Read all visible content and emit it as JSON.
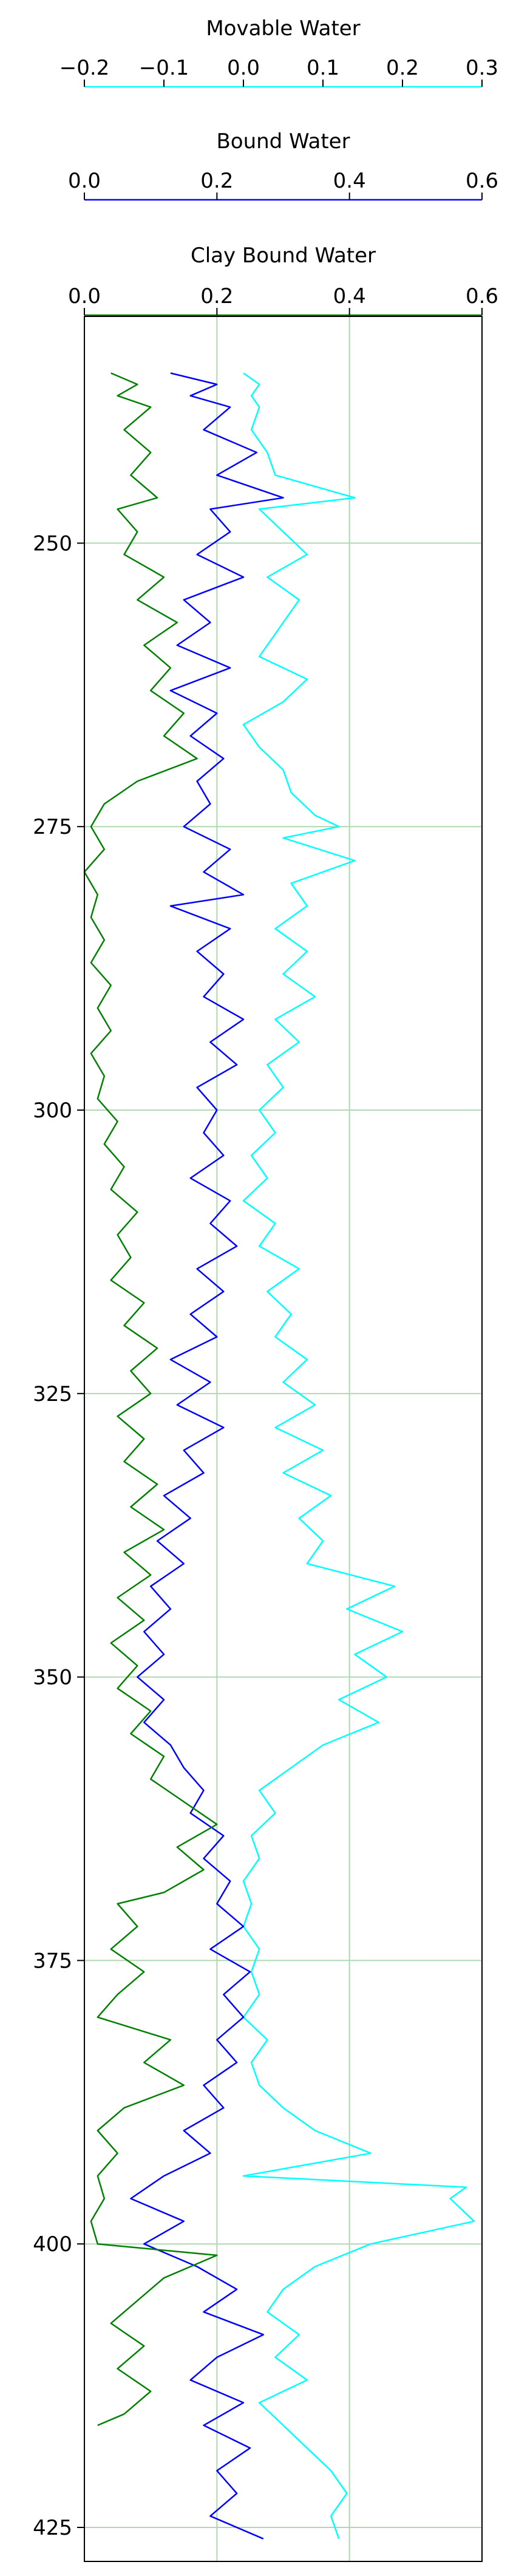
{
  "chart_data": {
    "type": "line",
    "orientation": "vertical-depth",
    "y": {
      "ticks": [
        250,
        275,
        300,
        325,
        350,
        375,
        400,
        425
      ],
      "tick_labels": [
        "250",
        "275",
        "300",
        "325",
        "350",
        "375",
        "400",
        "425"
      ],
      "range": [
        230,
        428
      ],
      "inverted": true
    },
    "grid": true,
    "tracks": [
      {
        "label": "Movable Water",
        "color": "#00ffff",
        "range": [
          -0.2,
          0.3
        ],
        "ticks": [
          -0.2,
          -0.1,
          0.0,
          0.1,
          0.2,
          0.3
        ],
        "tick_labels": [
          "−0.2",
          "−0.1",
          "0.0",
          "0.1",
          "0.2",
          "0.3"
        ],
        "values": [
          [
            235,
            0.0
          ],
          [
            236,
            0.02
          ],
          [
            237,
            0.01
          ],
          [
            238,
            0.02
          ],
          [
            240,
            0.01
          ],
          [
            242,
            0.03
          ],
          [
            244,
            0.04
          ],
          [
            246,
            0.14
          ],
          [
            247,
            0.02
          ],
          [
            249,
            0.05
          ],
          [
            251,
            0.08
          ],
          [
            253,
            0.03
          ],
          [
            255,
            0.07
          ],
          [
            258,
            0.04
          ],
          [
            260,
            0.02
          ],
          [
            262,
            0.08
          ],
          [
            264,
            0.05
          ],
          [
            266,
            0.0
          ],
          [
            268,
            0.02
          ],
          [
            270,
            0.05
          ],
          [
            272,
            0.06
          ],
          [
            274,
            0.09
          ],
          [
            275,
            0.12
          ],
          [
            276,
            0.05
          ],
          [
            278,
            0.14
          ],
          [
            280,
            0.06
          ],
          [
            282,
            0.08
          ],
          [
            284,
            0.04
          ],
          [
            286,
            0.08
          ],
          [
            288,
            0.05
          ],
          [
            290,
            0.09
          ],
          [
            292,
            0.04
          ],
          [
            294,
            0.07
          ],
          [
            296,
            0.03
          ],
          [
            298,
            0.05
          ],
          [
            300,
            0.02
          ],
          [
            302,
            0.04
          ],
          [
            304,
            0.01
          ],
          [
            306,
            0.03
          ],
          [
            308,
            0.0
          ],
          [
            310,
            0.04
          ],
          [
            312,
            0.02
          ],
          [
            314,
            0.07
          ],
          [
            316,
            0.03
          ],
          [
            318,
            0.06
          ],
          [
            320,
            0.04
          ],
          [
            322,
            0.08
          ],
          [
            324,
            0.05
          ],
          [
            326,
            0.09
          ],
          [
            328,
            0.04
          ],
          [
            330,
            0.1
          ],
          [
            332,
            0.05
          ],
          [
            334,
            0.11
          ],
          [
            336,
            0.07
          ],
          [
            338,
            0.1
          ],
          [
            340,
            0.08
          ],
          [
            342,
            0.19
          ],
          [
            344,
            0.13
          ],
          [
            346,
            0.2
          ],
          [
            348,
            0.14
          ],
          [
            350,
            0.18
          ],
          [
            352,
            0.12
          ],
          [
            354,
            0.17
          ],
          [
            356,
            0.1
          ],
          [
            358,
            0.06
          ],
          [
            360,
            0.02
          ],
          [
            362,
            0.04
          ],
          [
            364,
            0.01
          ],
          [
            366,
            0.02
          ],
          [
            368,
            0.0
          ],
          [
            370,
            0.01
          ],
          [
            372,
            0.0
          ],
          [
            374,
            0.02
          ],
          [
            376,
            0.01
          ],
          [
            378,
            0.02
          ],
          [
            380,
            0.0
          ],
          [
            382,
            0.03
          ],
          [
            384,
            0.01
          ],
          [
            386,
            0.02
          ],
          [
            388,
            0.05
          ],
          [
            390,
            0.09
          ],
          [
            392,
            0.16
          ],
          [
            394,
            0.0
          ],
          [
            395,
            0.28
          ],
          [
            396,
            0.26
          ],
          [
            398,
            0.29
          ],
          [
            400,
            0.16
          ],
          [
            402,
            0.09
          ],
          [
            404,
            0.05
          ],
          [
            406,
            0.03
          ],
          [
            408,
            0.07
          ],
          [
            410,
            0.04
          ],
          [
            412,
            0.08
          ],
          [
            414,
            0.02
          ],
          [
            416,
            0.05
          ],
          [
            418,
            0.08
          ],
          [
            420,
            0.11
          ],
          [
            422,
            0.13
          ],
          [
            424,
            0.11
          ],
          [
            426,
            0.12
          ]
        ]
      },
      {
        "label": "Bound Water",
        "color": "#0000ff",
        "range": [
          0.0,
          0.6
        ],
        "ticks": [
          0.0,
          0.2,
          0.4,
          0.6
        ],
        "tick_labels": [
          "0.0",
          "0.2",
          "0.4",
          "0.6"
        ],
        "values": [
          [
            235,
            0.13
          ],
          [
            236,
            0.2
          ],
          [
            237,
            0.16
          ],
          [
            238,
            0.22
          ],
          [
            240,
            0.18
          ],
          [
            242,
            0.26
          ],
          [
            244,
            0.2
          ],
          [
            246,
            0.3
          ],
          [
            247,
            0.19
          ],
          [
            249,
            0.22
          ],
          [
            251,
            0.17
          ],
          [
            253,
            0.24
          ],
          [
            255,
            0.15
          ],
          [
            257,
            0.19
          ],
          [
            259,
            0.14
          ],
          [
            261,
            0.22
          ],
          [
            263,
            0.13
          ],
          [
            265,
            0.2
          ],
          [
            267,
            0.16
          ],
          [
            269,
            0.21
          ],
          [
            271,
            0.17
          ],
          [
            273,
            0.19
          ],
          [
            275,
            0.15
          ],
          [
            277,
            0.22
          ],
          [
            279,
            0.18
          ],
          [
            281,
            0.24
          ],
          [
            282,
            0.13
          ],
          [
            284,
            0.22
          ],
          [
            286,
            0.17
          ],
          [
            288,
            0.21
          ],
          [
            290,
            0.18
          ],
          [
            292,
            0.24
          ],
          [
            294,
            0.19
          ],
          [
            296,
            0.23
          ],
          [
            298,
            0.17
          ],
          [
            300,
            0.2
          ],
          [
            302,
            0.18
          ],
          [
            304,
            0.21
          ],
          [
            306,
            0.16
          ],
          [
            308,
            0.22
          ],
          [
            310,
            0.19
          ],
          [
            312,
            0.23
          ],
          [
            314,
            0.17
          ],
          [
            316,
            0.21
          ],
          [
            318,
            0.16
          ],
          [
            320,
            0.2
          ],
          [
            322,
            0.13
          ],
          [
            324,
            0.19
          ],
          [
            326,
            0.14
          ],
          [
            328,
            0.21
          ],
          [
            330,
            0.15
          ],
          [
            332,
            0.18
          ],
          [
            334,
            0.12
          ],
          [
            336,
            0.16
          ],
          [
            338,
            0.11
          ],
          [
            340,
            0.15
          ],
          [
            342,
            0.1
          ],
          [
            344,
            0.13
          ],
          [
            346,
            0.09
          ],
          [
            348,
            0.12
          ],
          [
            350,
            0.08
          ],
          [
            352,
            0.12
          ],
          [
            354,
            0.09
          ],
          [
            356,
            0.13
          ],
          [
            358,
            0.15
          ],
          [
            360,
            0.18
          ],
          [
            362,
            0.16
          ],
          [
            364,
            0.21
          ],
          [
            366,
            0.18
          ],
          [
            368,
            0.22
          ],
          [
            370,
            0.2
          ],
          [
            372,
            0.24
          ],
          [
            374,
            0.19
          ],
          [
            376,
            0.25
          ],
          [
            378,
            0.21
          ],
          [
            380,
            0.24
          ],
          [
            382,
            0.2
          ],
          [
            384,
            0.23
          ],
          [
            386,
            0.18
          ],
          [
            388,
            0.21
          ],
          [
            390,
            0.15
          ],
          [
            392,
            0.19
          ],
          [
            394,
            0.12
          ],
          [
            396,
            0.07
          ],
          [
            398,
            0.15
          ],
          [
            400,
            0.09
          ],
          [
            402,
            0.17
          ],
          [
            404,
            0.23
          ],
          [
            406,
            0.18
          ],
          [
            408,
            0.27
          ],
          [
            410,
            0.2
          ],
          [
            412,
            0.16
          ],
          [
            414,
            0.24
          ],
          [
            416,
            0.18
          ],
          [
            418,
            0.25
          ],
          [
            420,
            0.2
          ],
          [
            422,
            0.23
          ],
          [
            424,
            0.19
          ],
          [
            426,
            0.27
          ]
        ]
      },
      {
        "label": "Clay Bound Water",
        "color": "#008000",
        "range": [
          0.0,
          0.6
        ],
        "ticks": [
          0.0,
          0.2,
          0.4,
          0.6
        ],
        "tick_labels": [
          "0.0",
          "0.2",
          "0.4",
          "0.6"
        ],
        "values": [
          [
            235,
            0.04
          ],
          [
            236,
            0.08
          ],
          [
            237,
            0.05
          ],
          [
            238,
            0.1
          ],
          [
            240,
            0.06
          ],
          [
            242,
            0.1
          ],
          [
            244,
            0.07
          ],
          [
            246,
            0.11
          ],
          [
            247,
            0.05
          ],
          [
            249,
            0.08
          ],
          [
            251,
            0.06
          ],
          [
            253,
            0.12
          ],
          [
            255,
            0.08
          ],
          [
            257,
            0.14
          ],
          [
            259,
            0.09
          ],
          [
            261,
            0.13
          ],
          [
            263,
            0.1
          ],
          [
            265,
            0.15
          ],
          [
            267,
            0.12
          ],
          [
            269,
            0.17
          ],
          [
            271,
            0.08
          ],
          [
            273,
            0.03
          ],
          [
            275,
            0.01
          ],
          [
            277,
            0.03
          ],
          [
            279,
            0.0
          ],
          [
            281,
            0.02
          ],
          [
            283,
            0.01
          ],
          [
            285,
            0.03
          ],
          [
            287,
            0.01
          ],
          [
            289,
            0.04
          ],
          [
            291,
            0.02
          ],
          [
            293,
            0.04
          ],
          [
            295,
            0.01
          ],
          [
            297,
            0.03
          ],
          [
            299,
            0.02
          ],
          [
            301,
            0.05
          ],
          [
            303,
            0.03
          ],
          [
            305,
            0.06
          ],
          [
            307,
            0.04
          ],
          [
            309,
            0.08
          ],
          [
            311,
            0.05
          ],
          [
            313,
            0.07
          ],
          [
            315,
            0.04
          ],
          [
            317,
            0.09
          ],
          [
            319,
            0.06
          ],
          [
            321,
            0.11
          ],
          [
            323,
            0.07
          ],
          [
            325,
            0.1
          ],
          [
            327,
            0.05
          ],
          [
            329,
            0.09
          ],
          [
            331,
            0.06
          ],
          [
            333,
            0.11
          ],
          [
            335,
            0.07
          ],
          [
            337,
            0.12
          ],
          [
            339,
            0.06
          ],
          [
            341,
            0.1
          ],
          [
            343,
            0.05
          ],
          [
            345,
            0.09
          ],
          [
            347,
            0.04
          ],
          [
            349,
            0.08
          ],
          [
            351,
            0.05
          ],
          [
            353,
            0.1
          ],
          [
            355,
            0.07
          ],
          [
            357,
            0.12
          ],
          [
            359,
            0.1
          ],
          [
            361,
            0.15
          ],
          [
            363,
            0.2
          ],
          [
            365,
            0.14
          ],
          [
            367,
            0.18
          ],
          [
            369,
            0.12
          ],
          [
            370,
            0.05
          ],
          [
            372,
            0.08
          ],
          [
            374,
            0.04
          ],
          [
            376,
            0.09
          ],
          [
            378,
            0.05
          ],
          [
            380,
            0.02
          ],
          [
            382,
            0.13
          ],
          [
            384,
            0.09
          ],
          [
            386,
            0.15
          ],
          [
            388,
            0.06
          ],
          [
            390,
            0.02
          ],
          [
            392,
            0.05
          ],
          [
            394,
            0.02
          ],
          [
            396,
            0.03
          ],
          [
            398,
            0.01
          ],
          [
            400,
            0.02
          ],
          [
            401,
            0.2
          ],
          [
            403,
            0.12
          ],
          [
            405,
            0.08
          ],
          [
            407,
            0.04
          ],
          [
            409,
            0.09
          ],
          [
            411,
            0.05
          ],
          [
            413,
            0.1
          ],
          [
            415,
            0.06
          ],
          [
            416,
            0.02
          ]
        ]
      }
    ]
  }
}
